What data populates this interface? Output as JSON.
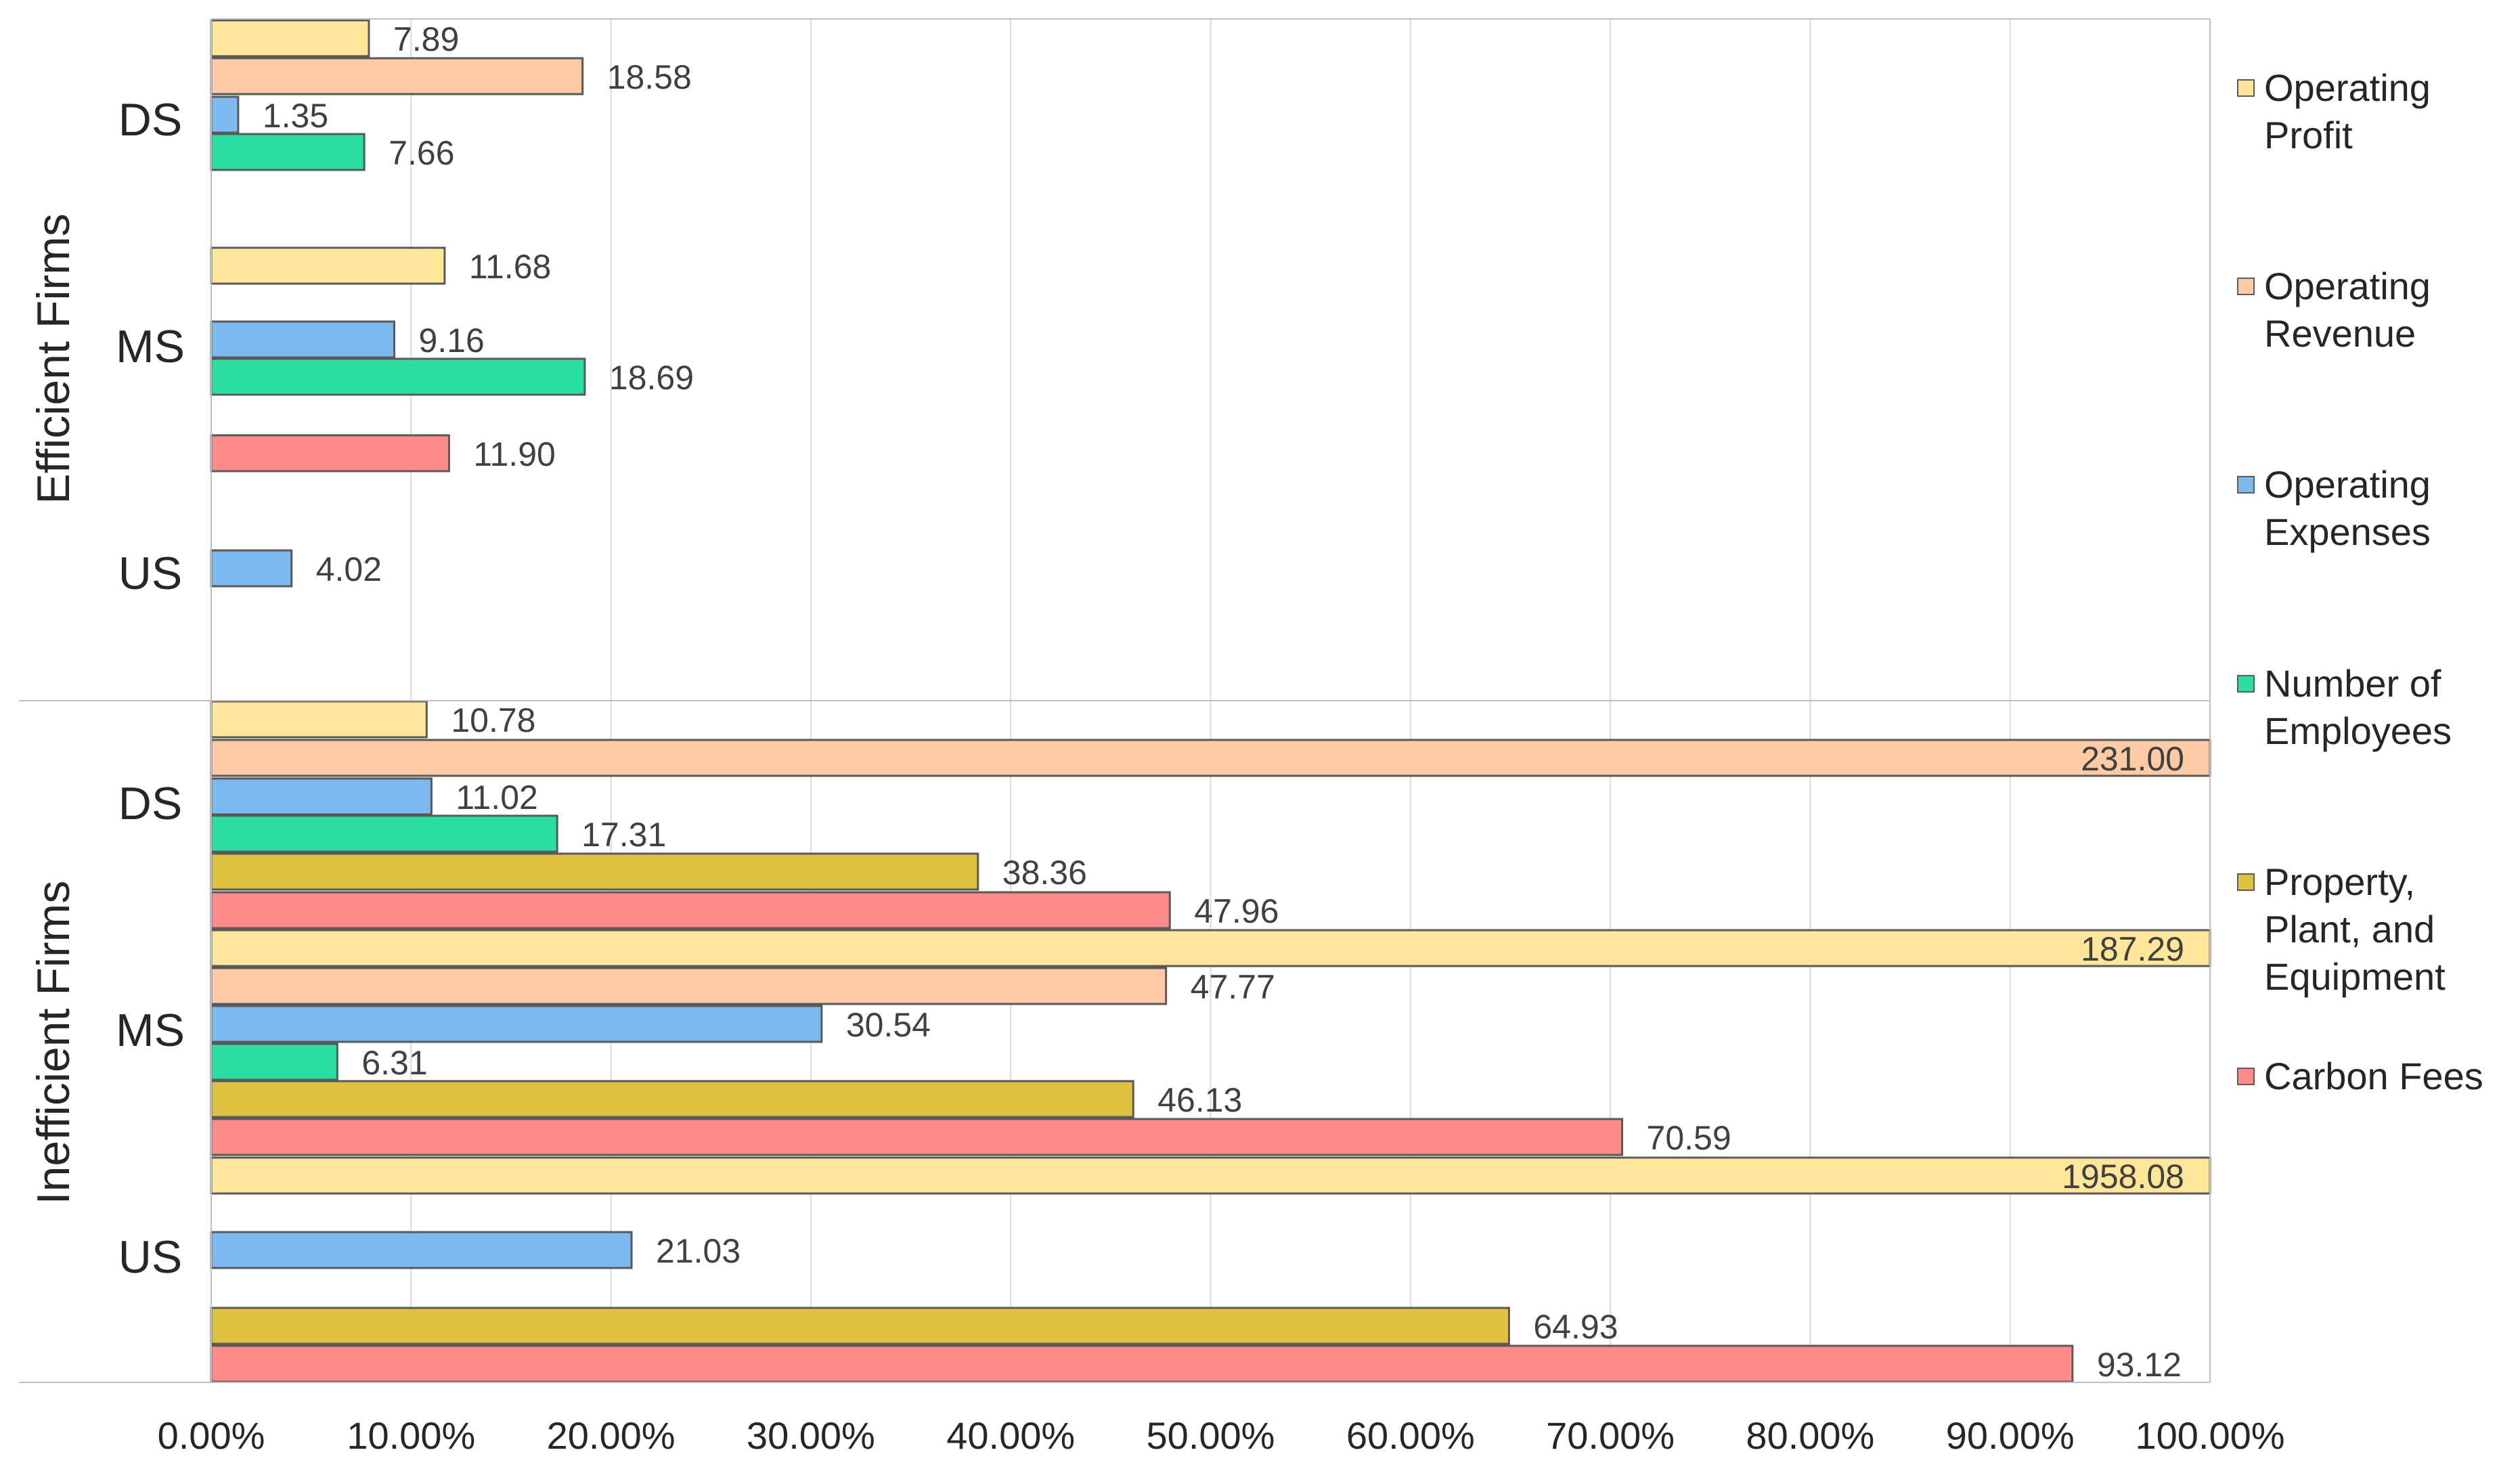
{
  "chart_data": {
    "type": "bar",
    "orientation": "horizontal",
    "xlim": [
      0,
      100
    ],
    "x_ticks": [
      "0.00%",
      "10.00%",
      "20.00%",
      "30.00%",
      "40.00%",
      "50.00%",
      "60.00%",
      "70.00%",
      "80.00%",
      "90.00%",
      "100.00%"
    ],
    "groups": [
      {
        "name": "Efficient Firms",
        "categories": [
          {
            "name": "DS",
            "bars": [
              {
                "series": "Operating Profit",
                "value": 7.89,
                "label": "7.89"
              },
              {
                "series": "Operating Revenue",
                "value": 18.58,
                "label": "18.58"
              },
              {
                "series": "Operating Expenses",
                "value": 1.35,
                "label": "1.35"
              },
              {
                "series": "Number of Employees",
                "value": 7.66,
                "label": "7.66"
              }
            ]
          },
          {
            "name": "MS",
            "bars": [
              {
                "series": "Operating Profit",
                "value": 11.68,
                "label": "11.68"
              },
              {
                "series": "Operating Expenses",
                "value": 9.16,
                "label": "9.16"
              },
              {
                "series": "Number of Employees",
                "value": 18.69,
                "label": "18.69"
              },
              {
                "series": "Carbon Fees",
                "value": 11.9,
                "label": "11.90"
              }
            ]
          },
          {
            "name": "US",
            "bars": [
              {
                "series": "Operating Expenses",
                "value": 4.02,
                "label": "4.02"
              }
            ]
          }
        ]
      },
      {
        "name": "Inefficient Firms",
        "categories": [
          {
            "name": "DS",
            "bars": [
              {
                "series": "Operating Profit",
                "value": 10.78,
                "label": "10.78"
              },
              {
                "series": "Operating Revenue",
                "value": 231.0,
                "label": "231.00"
              },
              {
                "series": "Operating Expenses",
                "value": 11.02,
                "label": "11.02"
              },
              {
                "series": "Number of Employees",
                "value": 17.31,
                "label": "17.31"
              },
              {
                "series": "Property, Plant, and Equipment",
                "value": 38.36,
                "label": "38.36"
              },
              {
                "series": "Carbon Fees",
                "value": 47.96,
                "label": "47.96"
              }
            ]
          },
          {
            "name": "MS",
            "bars": [
              {
                "series": "Operating Profit",
                "value": 187.29,
                "label": "187.29"
              },
              {
                "series": "Operating Revenue",
                "value": 47.77,
                "label": "47.77"
              },
              {
                "series": "Operating Expenses",
                "value": 30.54,
                "label": "30.54"
              },
              {
                "series": "Number of Employees",
                "value": 6.31,
                "label": "6.31"
              },
              {
                "series": "Property, Plant, and Equipment",
                "value": 46.13,
                "label": "46.13"
              },
              {
                "series": "Carbon Fees",
                "value": 70.59,
                "label": "70.59"
              }
            ]
          },
          {
            "name": "US",
            "bars": [
              {
                "series": "Operating Profit",
                "value": 1958.08,
                "label": "1958.08"
              },
              {
                "series": "Operating Expenses",
                "value": 21.03,
                "label": "21.03"
              },
              {
                "series": "Property, Plant, and Equipment",
                "value": 64.93,
                "label": "64.93"
              },
              {
                "series": "Carbon Fees",
                "value": 93.12,
                "label": "93.12"
              }
            ]
          }
        ]
      }
    ],
    "legend": [
      {
        "name": "Operating Profit",
        "label": "Operating\nProfit",
        "color": "#FFE699"
      },
      {
        "name": "Operating Revenue",
        "label": "Operating\nRevenue",
        "color": "#FFCAA6"
      },
      {
        "name": "Operating Expenses",
        "label": "Operating\nExpenses",
        "color": "#7DB9EF"
      },
      {
        "name": "Number of Employees",
        "label": "Number of\nEmployees",
        "color": "#29DFA3"
      },
      {
        "name": "Property, Plant, and Equipment",
        "label": "Property,\nPlant, and\nEquipment",
        "color": "#E0C240"
      },
      {
        "name": "Carbon Fees",
        "label": "Carbon Fees",
        "color": "#FF8B8B"
      }
    ],
    "legend_position": "right",
    "grid": true
  }
}
